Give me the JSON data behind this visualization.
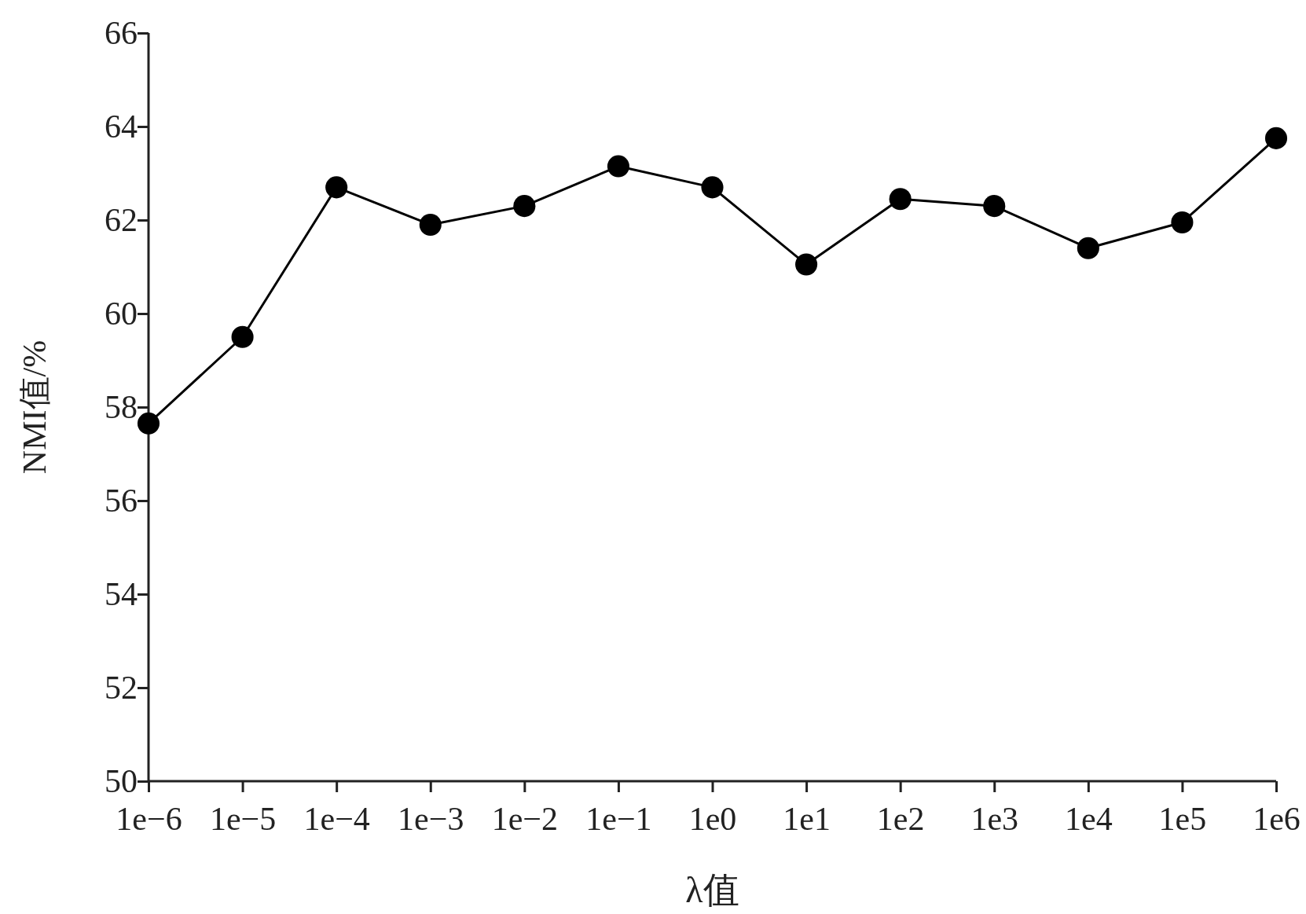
{
  "chart_data": {
    "type": "line",
    "xlabel": "λ值",
    "ylabel": "NMI值/%",
    "categories": [
      "1e−6",
      "1e−5",
      "1e−4",
      "1e−3",
      "1e−2",
      "1e−1",
      "1e0",
      "1e1",
      "1e2",
      "1e3",
      "1e4",
      "1e5",
      "1e6"
    ],
    "series": [
      {
        "color": "#000000",
        "values": [
          57.65,
          59.5,
          62.7,
          61.9,
          62.3,
          63.15,
          62.7,
          61.05,
          62.45,
          62.3,
          61.4,
          61.95,
          63.75
        ]
      }
    ],
    "ylim": [
      50,
      66
    ],
    "yticks": [
      50,
      52,
      54,
      56,
      58,
      60,
      62,
      64,
      66
    ],
    "marker": "circle",
    "line_style": "solid",
    "grid": false
  }
}
